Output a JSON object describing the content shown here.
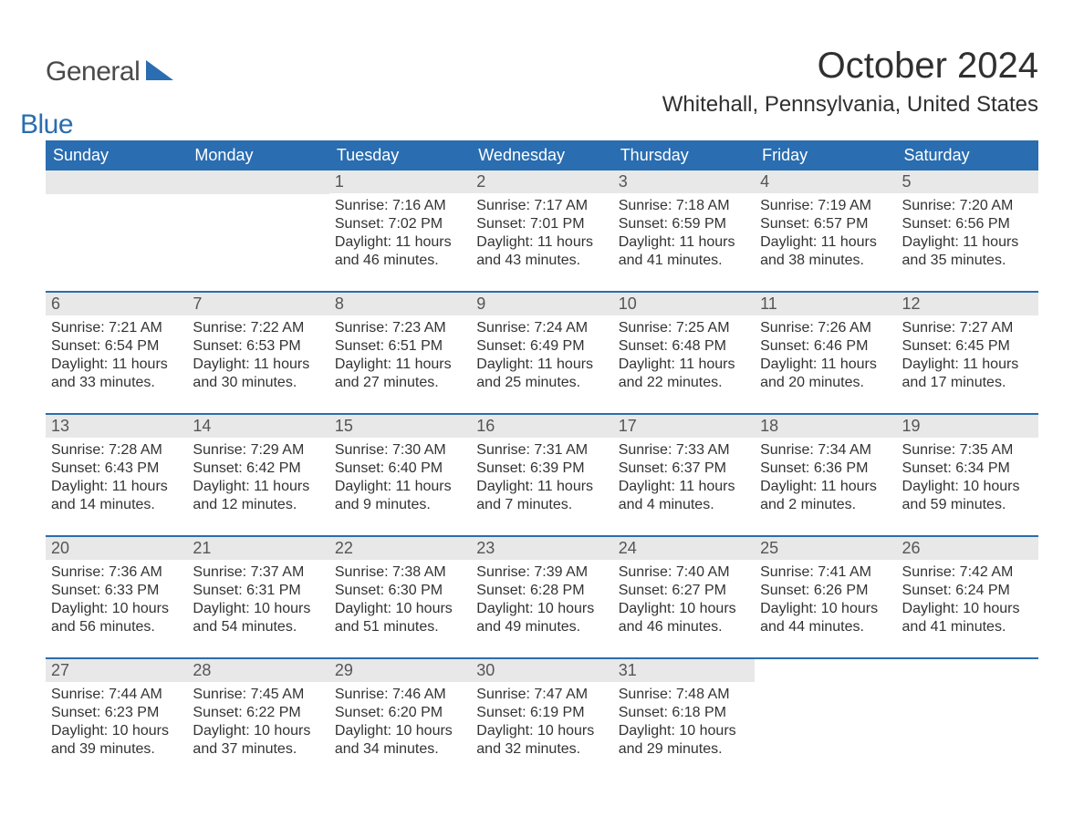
{
  "colors": {
    "header_bg": "#2a6db0",
    "header_text": "#ffffff",
    "daynum_bg": "#e8e8e8",
    "daynum_text": "#555555",
    "row_border": "#2a6db0",
    "body_text": "#333333",
    "page_bg": "#ffffff",
    "logo_gray": "#4a4a4a",
    "logo_blue": "#2a6db0"
  },
  "typography": {
    "title_fontsize": 40,
    "location_fontsize": 24,
    "header_fontsize": 18,
    "daynum_fontsize": 18,
    "body_fontsize": 16,
    "logo_fontsize": 30
  },
  "logo": {
    "part1": "General",
    "part2": "Blue"
  },
  "title": "October 2024",
  "location": "Whitehall, Pennsylvania, United States",
  "weekdays": [
    "Sunday",
    "Monday",
    "Tuesday",
    "Wednesday",
    "Thursday",
    "Friday",
    "Saturday"
  ],
  "labels": {
    "sunrise": "Sunrise: ",
    "sunset": "Sunset: ",
    "daylight": "Daylight: "
  },
  "weeks": [
    [
      null,
      null,
      {
        "n": "1",
        "sunrise": "7:16 AM",
        "sunset": "7:02 PM",
        "daylight": "11 hours and 46 minutes."
      },
      {
        "n": "2",
        "sunrise": "7:17 AM",
        "sunset": "7:01 PM",
        "daylight": "11 hours and 43 minutes."
      },
      {
        "n": "3",
        "sunrise": "7:18 AM",
        "sunset": "6:59 PM",
        "daylight": "11 hours and 41 minutes."
      },
      {
        "n": "4",
        "sunrise": "7:19 AM",
        "sunset": "6:57 PM",
        "daylight": "11 hours and 38 minutes."
      },
      {
        "n": "5",
        "sunrise": "7:20 AM",
        "sunset": "6:56 PM",
        "daylight": "11 hours and 35 minutes."
      }
    ],
    [
      {
        "n": "6",
        "sunrise": "7:21 AM",
        "sunset": "6:54 PM",
        "daylight": "11 hours and 33 minutes."
      },
      {
        "n": "7",
        "sunrise": "7:22 AM",
        "sunset": "6:53 PM",
        "daylight": "11 hours and 30 minutes."
      },
      {
        "n": "8",
        "sunrise": "7:23 AM",
        "sunset": "6:51 PM",
        "daylight": "11 hours and 27 minutes."
      },
      {
        "n": "9",
        "sunrise": "7:24 AM",
        "sunset": "6:49 PM",
        "daylight": "11 hours and 25 minutes."
      },
      {
        "n": "10",
        "sunrise": "7:25 AM",
        "sunset": "6:48 PM",
        "daylight": "11 hours and 22 minutes."
      },
      {
        "n": "11",
        "sunrise": "7:26 AM",
        "sunset": "6:46 PM",
        "daylight": "11 hours and 20 minutes."
      },
      {
        "n": "12",
        "sunrise": "7:27 AM",
        "sunset": "6:45 PM",
        "daylight": "11 hours and 17 minutes."
      }
    ],
    [
      {
        "n": "13",
        "sunrise": "7:28 AM",
        "sunset": "6:43 PM",
        "daylight": "11 hours and 14 minutes."
      },
      {
        "n": "14",
        "sunrise": "7:29 AM",
        "sunset": "6:42 PM",
        "daylight": "11 hours and 12 minutes."
      },
      {
        "n": "15",
        "sunrise": "7:30 AM",
        "sunset": "6:40 PM",
        "daylight": "11 hours and 9 minutes."
      },
      {
        "n": "16",
        "sunrise": "7:31 AM",
        "sunset": "6:39 PM",
        "daylight": "11 hours and 7 minutes."
      },
      {
        "n": "17",
        "sunrise": "7:33 AM",
        "sunset": "6:37 PM",
        "daylight": "11 hours and 4 minutes."
      },
      {
        "n": "18",
        "sunrise": "7:34 AM",
        "sunset": "6:36 PM",
        "daylight": "11 hours and 2 minutes."
      },
      {
        "n": "19",
        "sunrise": "7:35 AM",
        "sunset": "6:34 PM",
        "daylight": "10 hours and 59 minutes."
      }
    ],
    [
      {
        "n": "20",
        "sunrise": "7:36 AM",
        "sunset": "6:33 PM",
        "daylight": "10 hours and 56 minutes."
      },
      {
        "n": "21",
        "sunrise": "7:37 AM",
        "sunset": "6:31 PM",
        "daylight": "10 hours and 54 minutes."
      },
      {
        "n": "22",
        "sunrise": "7:38 AM",
        "sunset": "6:30 PM",
        "daylight": "10 hours and 51 minutes."
      },
      {
        "n": "23",
        "sunrise": "7:39 AM",
        "sunset": "6:28 PM",
        "daylight": "10 hours and 49 minutes."
      },
      {
        "n": "24",
        "sunrise": "7:40 AM",
        "sunset": "6:27 PM",
        "daylight": "10 hours and 46 minutes."
      },
      {
        "n": "25",
        "sunrise": "7:41 AM",
        "sunset": "6:26 PM",
        "daylight": "10 hours and 44 minutes."
      },
      {
        "n": "26",
        "sunrise": "7:42 AM",
        "sunset": "6:24 PM",
        "daylight": "10 hours and 41 minutes."
      }
    ],
    [
      {
        "n": "27",
        "sunrise": "7:44 AM",
        "sunset": "6:23 PM",
        "daylight": "10 hours and 39 minutes."
      },
      {
        "n": "28",
        "sunrise": "7:45 AM",
        "sunset": "6:22 PM",
        "daylight": "10 hours and 37 minutes."
      },
      {
        "n": "29",
        "sunrise": "7:46 AM",
        "sunset": "6:20 PM",
        "daylight": "10 hours and 34 minutes."
      },
      {
        "n": "30",
        "sunrise": "7:47 AM",
        "sunset": "6:19 PM",
        "daylight": "10 hours and 32 minutes."
      },
      {
        "n": "31",
        "sunrise": "7:48 AM",
        "sunset": "6:18 PM",
        "daylight": "10 hours and 29 minutes."
      },
      null,
      null
    ]
  ]
}
